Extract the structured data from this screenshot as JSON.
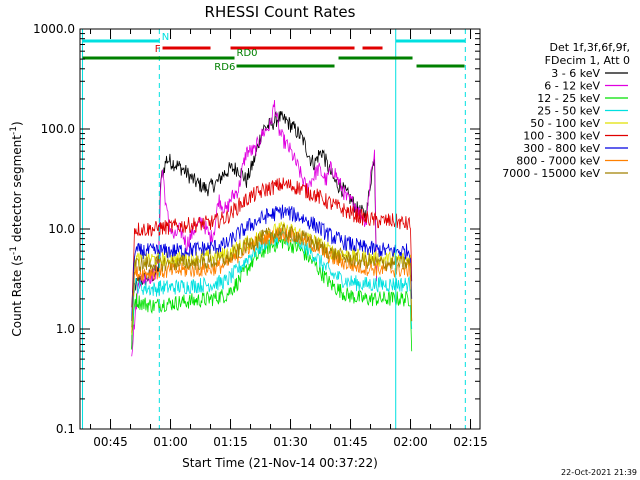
{
  "chart_data": {
    "type": "line",
    "title": "RHESSI Count Rates",
    "xlabel": "Start Time (21-Nov-14 00:37:22)",
    "ylabel": "Count Rate (s⁻¹ detector segment⁻¹)",
    "ylabel_text": "Count Rate (s",
    "ylabel_sup1": "-1",
    "ylabel_mid": " detector segment",
    "ylabel_sup2": "-1",
    "ylabel_end": ")",
    "y_scale": "log",
    "ylim": [
      0.1,
      1000
    ],
    "xlim_minutes": [
      37.37,
      137.37
    ],
    "x_ticks": [
      {
        "t": 45,
        "label": "00:45"
      },
      {
        "t": 60,
        "label": "01:00"
      },
      {
        "t": 75,
        "label": "01:15"
      },
      {
        "t": 90,
        "label": "01:30"
      },
      {
        "t": 105,
        "label": "01:45"
      },
      {
        "t": 120,
        "label": "02:00"
      },
      {
        "t": 135,
        "label": "02:15"
      }
    ],
    "y_ticks": [
      {
        "v": 0.1,
        "label": "0.1"
      },
      {
        "v": 1,
        "label": "1.0"
      },
      {
        "v": 10,
        "label": "10.0"
      },
      {
        "v": 100,
        "label": "100.0"
      },
      {
        "v": 1000,
        "label": "1000.0"
      }
    ],
    "legend": {
      "header1": "Det 1f,3f,6f,9f,",
      "header2": "FDecim 1, Att 0",
      "entries": [
        {
          "name": "3 - 6 keV",
          "color": "#000000"
        },
        {
          "name": "6 - 12 keV",
          "color": "#e000e0"
        },
        {
          "name": "12 - 25 keV",
          "color": "#00e000"
        },
        {
          "name": "25 - 50 keV",
          "color": "#00e0e0"
        },
        {
          "name": "50 - 100 keV",
          "color": "#e0e000"
        },
        {
          "name": "100 - 300 keV",
          "color": "#e00000"
        },
        {
          "name": "300 - 800 keV",
          "color": "#0000e0"
        },
        {
          "name": "800 - 7000 keV",
          "color": "#ff8000"
        },
        {
          "name": "7000 - 15000 keV",
          "color": "#a08000"
        }
      ]
    },
    "series": [
      {
        "name": "3 - 6 keV",
        "color": "#000000",
        "points": [
          [
            50.3,
            0.6
          ],
          [
            50.6,
            2.5
          ],
          [
            52,
            3
          ],
          [
            56,
            3.5
          ],
          [
            57,
            4
          ],
          [
            57.5,
            30
          ],
          [
            59,
            50
          ],
          [
            61,
            45
          ],
          [
            63,
            40
          ],
          [
            66,
            30
          ],
          [
            69,
            25
          ],
          [
            71,
            28
          ],
          [
            72,
            30
          ],
          [
            73,
            35
          ],
          [
            75,
            40
          ],
          [
            77,
            40
          ],
          [
            78,
            35
          ],
          [
            79,
            30
          ],
          [
            81,
            50
          ],
          [
            83,
            100
          ],
          [
            85,
            110
          ],
          [
            87,
            130
          ],
          [
            89,
            120
          ],
          [
            91,
            100
          ],
          [
            93,
            80
          ],
          [
            95,
            50
          ],
          [
            96,
            45
          ],
          [
            97,
            55
          ],
          [
            98,
            60
          ],
          [
            99,
            45
          ],
          [
            101,
            30
          ],
          [
            103,
            25
          ],
          [
            105,
            20
          ],
          [
            107,
            15
          ],
          [
            109,
            14
          ],
          [
            110,
            30
          ],
          [
            111,
            55
          ],
          [
            111.5,
            3
          ]
        ]
      },
      {
        "name": "6 - 12 keV",
        "color": "#e000e0",
        "points": [
          [
            50.3,
            0.6
          ],
          [
            52,
            3
          ],
          [
            56,
            3.5
          ],
          [
            57,
            5
          ],
          [
            57.5,
            25
          ],
          [
            58,
            40
          ],
          [
            59,
            15
          ],
          [
            60,
            10
          ],
          [
            61,
            8
          ],
          [
            62,
            10
          ],
          [
            63,
            9
          ],
          [
            64,
            7
          ],
          [
            66,
            10
          ],
          [
            68,
            12
          ],
          [
            70,
            8
          ],
          [
            71,
            10
          ],
          [
            72,
            20
          ],
          [
            74,
            15
          ],
          [
            75,
            20
          ],
          [
            77,
            25
          ],
          [
            78,
            40
          ],
          [
            79,
            60
          ],
          [
            81,
            60
          ],
          [
            83,
            90
          ],
          [
            85,
            110
          ],
          [
            86,
            180
          ],
          [
            87,
            100
          ],
          [
            88,
            80
          ],
          [
            90,
            60
          ],
          [
            92,
            40
          ],
          [
            94,
            25
          ],
          [
            95,
            30
          ],
          [
            96,
            35
          ],
          [
            97,
            40
          ],
          [
            98,
            35
          ],
          [
            99,
            30
          ],
          [
            100,
            40
          ],
          [
            101,
            38
          ],
          [
            102,
            30
          ],
          [
            103,
            25
          ],
          [
            104,
            20
          ],
          [
            106,
            18
          ],
          [
            107,
            15
          ],
          [
            108,
            13
          ],
          [
            109,
            12
          ],
          [
            110,
            35
          ],
          [
            111,
            60
          ],
          [
            111.5,
            3
          ]
        ]
      },
      {
        "name": "12 - 25 keV",
        "color": "#00e000",
        "points": [
          [
            50.3,
            0.6
          ],
          [
            51,
            2
          ],
          [
            53,
            1.8
          ],
          [
            56,
            1.7
          ],
          [
            58,
            1.8
          ],
          [
            60,
            1.8
          ],
          [
            65,
            1.9
          ],
          [
            70,
            2.0
          ],
          [
            74,
            2.2
          ],
          [
            77,
            3.0
          ],
          [
            80,
            4.5
          ],
          [
            84,
            6.5
          ],
          [
            88,
            7.5
          ],
          [
            92,
            6.5
          ],
          [
            96,
            4.5
          ],
          [
            100,
            2.8
          ],
          [
            104,
            2.2
          ],
          [
            108,
            2.0
          ],
          [
            112,
            2.0
          ],
          [
            116,
            2.0
          ],
          [
            120,
            2.0
          ],
          [
            120.3,
            0.6
          ]
        ]
      },
      {
        "name": "25 - 50 keV",
        "color": "#00e0e0",
        "points": [
          [
            50.3,
            0.9
          ],
          [
            51,
            2.8
          ],
          [
            53,
            2.6
          ],
          [
            56,
            2.5
          ],
          [
            58,
            2.6
          ],
          [
            60,
            2.6
          ],
          [
            65,
            2.7
          ],
          [
            70,
            2.8
          ],
          [
            74,
            3.0
          ],
          [
            77,
            4.0
          ],
          [
            80,
            5.5
          ],
          [
            84,
            7.5
          ],
          [
            88,
            8.5
          ],
          [
            92,
            7.5
          ],
          [
            96,
            5.5
          ],
          [
            100,
            3.6
          ],
          [
            104,
            3.0
          ],
          [
            108,
            2.8
          ],
          [
            112,
            2.8
          ],
          [
            116,
            2.8
          ],
          [
            120,
            2.8
          ],
          [
            120.3,
            1.0
          ]
        ]
      },
      {
        "name": "50 - 100 keV",
        "color": "#e0e000",
        "points": [
          [
            50.3,
            1.0
          ],
          [
            51,
            5.0
          ],
          [
            56,
            5.0
          ],
          [
            60,
            5.0
          ],
          [
            65,
            5.1
          ],
          [
            70,
            5.3
          ],
          [
            74,
            5.6
          ],
          [
            77,
            6.5
          ],
          [
            80,
            7.5
          ],
          [
            84,
            9.0
          ],
          [
            88,
            10.0
          ],
          [
            92,
            9.0
          ],
          [
            96,
            7.5
          ],
          [
            100,
            6.0
          ],
          [
            104,
            5.5
          ],
          [
            108,
            5.2
          ],
          [
            112,
            5.0
          ],
          [
            116,
            5.0
          ],
          [
            120,
            5.0
          ],
          [
            120.3,
            1.2
          ]
        ]
      },
      {
        "name": "100 - 300 keV",
        "color": "#e00000",
        "points": [
          [
            50.3,
            1.5
          ],
          [
            51,
            10
          ],
          [
            56,
            10
          ],
          [
            60,
            10.5
          ],
          [
            65,
            11
          ],
          [
            70,
            11.5
          ],
          [
            74,
            13
          ],
          [
            77,
            17
          ],
          [
            80,
            21
          ],
          [
            84,
            25
          ],
          [
            88,
            28
          ],
          [
            92,
            26
          ],
          [
            96,
            22
          ],
          [
            100,
            18
          ],
          [
            104,
            15
          ],
          [
            108,
            13
          ],
          [
            112,
            12
          ],
          [
            116,
            12
          ],
          [
            120,
            11
          ],
          [
            120.3,
            3
          ]
        ]
      },
      {
        "name": "300 - 800 keV",
        "color": "#0000e0",
        "points": [
          [
            50.3,
            1.2
          ],
          [
            51,
            6.0
          ],
          [
            56,
            6.0
          ],
          [
            60,
            6.0
          ],
          [
            65,
            6.2
          ],
          [
            70,
            6.5
          ],
          [
            74,
            7.0
          ],
          [
            77,
            9.0
          ],
          [
            80,
            11
          ],
          [
            84,
            13.5
          ],
          [
            88,
            15
          ],
          [
            92,
            13.5
          ],
          [
            96,
            11
          ],
          [
            100,
            8.5
          ],
          [
            104,
            7.2
          ],
          [
            108,
            6.5
          ],
          [
            112,
            6.2
          ],
          [
            116,
            6.0
          ],
          [
            120,
            6.0
          ],
          [
            120.3,
            2
          ]
        ]
      },
      {
        "name": "800 - 7000 keV",
        "color": "#ff8000",
        "points": [
          [
            50.3,
            1.0
          ],
          [
            51,
            3.6
          ],
          [
            56,
            3.7
          ],
          [
            60,
            3.8
          ],
          [
            65,
            3.9
          ],
          [
            70,
            4.0
          ],
          [
            74,
            4.4
          ],
          [
            77,
            5.5
          ],
          [
            80,
            6.8
          ],
          [
            84,
            8.2
          ],
          [
            88,
            9.0
          ],
          [
            92,
            8.2
          ],
          [
            96,
            6.8
          ],
          [
            100,
            5.2
          ],
          [
            104,
            4.5
          ],
          [
            108,
            4.1
          ],
          [
            112,
            4.0
          ],
          [
            116,
            3.9
          ],
          [
            120,
            3.9
          ],
          [
            120.3,
            1.2
          ]
        ]
      },
      {
        "name": "7000 - 15000 keV",
        "color": "#a08000",
        "points": [
          [
            50.3,
            1.0
          ],
          [
            51,
            4.4
          ],
          [
            56,
            4.5
          ],
          [
            60,
            4.5
          ],
          [
            65,
            4.6
          ],
          [
            70,
            4.7
          ],
          [
            74,
            5.0
          ],
          [
            77,
            6.0
          ],
          [
            80,
            7.2
          ],
          [
            84,
            8.6
          ],
          [
            88,
            9.4
          ],
          [
            92,
            8.6
          ],
          [
            96,
            7.2
          ],
          [
            100,
            5.8
          ],
          [
            104,
            5.1
          ],
          [
            108,
            4.8
          ],
          [
            112,
            4.6
          ],
          [
            116,
            4.5
          ],
          [
            120,
            4.5
          ],
          [
            120.3,
            1.2
          ]
        ]
      }
    ],
    "vertical_lines": [
      {
        "t": 38.0,
        "color": "#00e0e0",
        "style": "solid"
      },
      {
        "t": 57.2,
        "color": "#00e0e0",
        "style": "dashed"
      },
      {
        "t": 116.3,
        "color": "#00e0e0",
        "style": "solid"
      },
      {
        "t": 133.7,
        "color": "#00e0e0",
        "style": "dashed"
      }
    ],
    "flag_bars": [
      {
        "label": "N",
        "color": "#00e0e0",
        "segments": [
          [
            38.0,
            57.2
          ],
          [
            116.3,
            133.7
          ]
        ]
      },
      {
        "label": "F",
        "color": "#e00000",
        "dashed": true,
        "segments": [
          [
            58.0,
            70.0
          ],
          [
            75.0,
            106.0
          ],
          [
            108.0,
            113.0
          ]
        ]
      },
      {
        "label": "RD0",
        "color": "#008000",
        "segments": [
          [
            38.0,
            76.0
          ],
          [
            102.0,
            120.5
          ]
        ]
      },
      {
        "label": "RD6",
        "color": "#008000",
        "segments": [
          [
            76.5,
            101.0
          ],
          [
            121.5,
            133.5
          ]
        ]
      }
    ],
    "timestamp": "22-Oct-2021 21:39"
  }
}
